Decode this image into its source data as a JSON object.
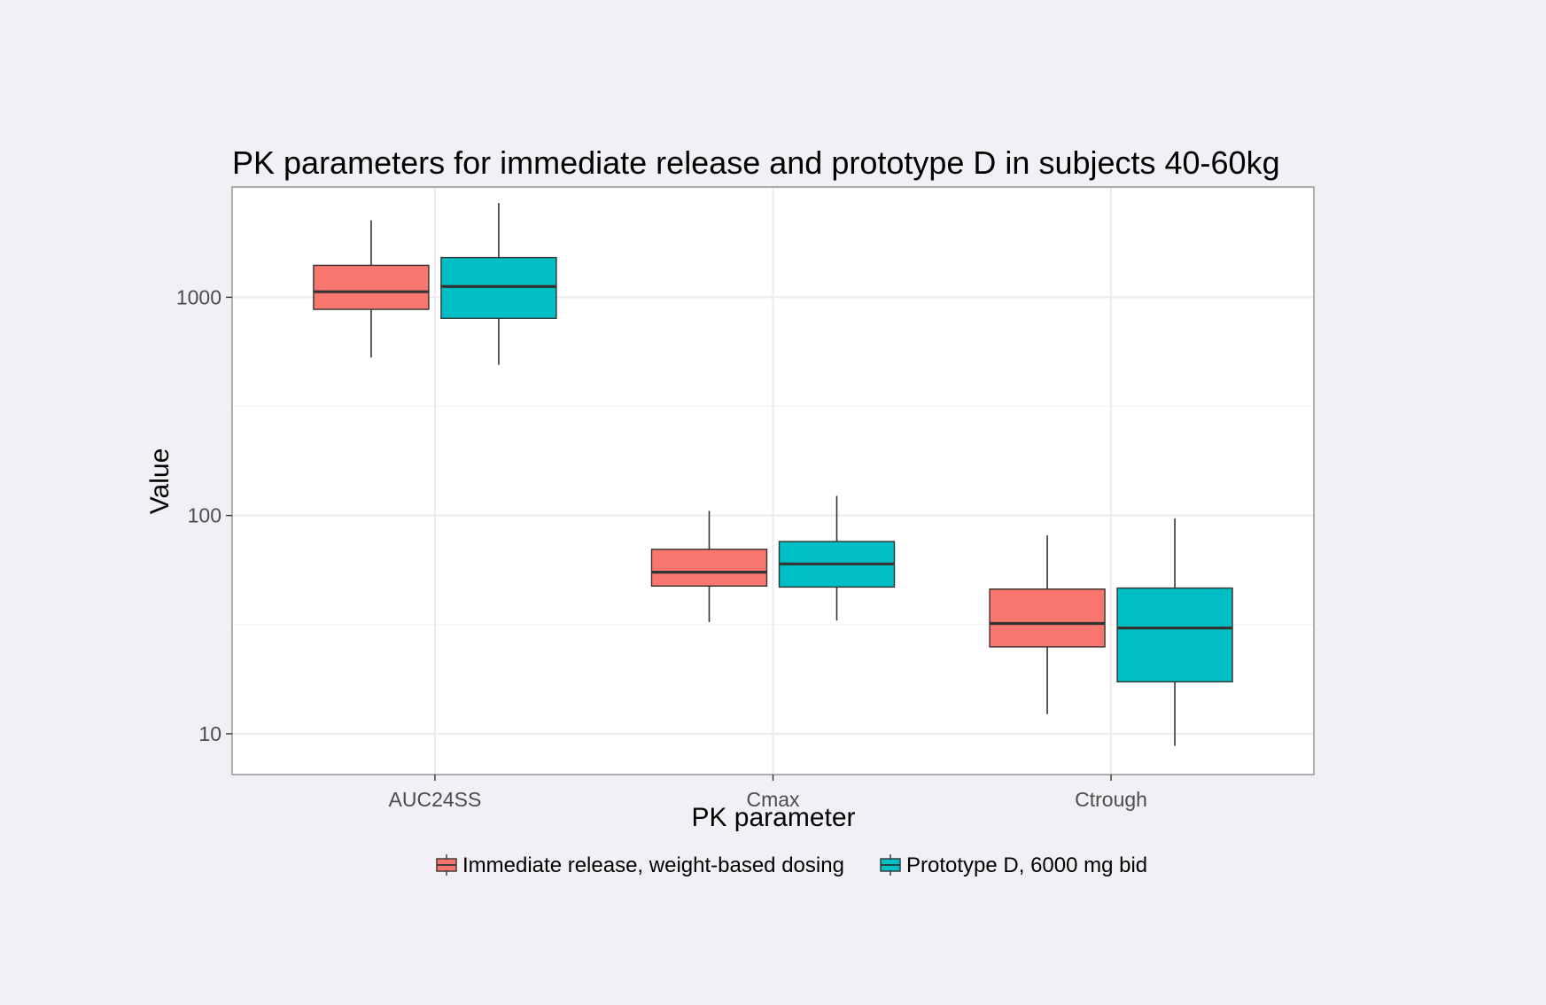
{
  "chart_data": {
    "type": "boxplot",
    "title": "PK parameters for immediate release and prototype D in subjects 40-60kg",
    "xlabel": "PK parameter",
    "ylabel": "Value",
    "y_scale": "log10",
    "ylim": [
      6.5,
      3200
    ],
    "y_ticks": [
      10,
      100,
      1000
    ],
    "y_tick_labels": [
      "10",
      "100",
      "1000"
    ],
    "categories": [
      "AUC24SS",
      "Cmax",
      "Ctrough"
    ],
    "grid": true,
    "legend_position": "bottom",
    "series": [
      {
        "name": "Immediate release, weight-based dosing",
        "color": "#F8766D",
        "boxes": [
          {
            "whisker_low": 530,
            "q1": 880,
            "median": 1060,
            "q3": 1400,
            "whisker_high": 2250
          },
          {
            "whisker_low": 32.5,
            "q1": 47.5,
            "median": 55,
            "q3": 70,
            "whisker_high": 105
          },
          {
            "whisker_low": 12.3,
            "q1": 25,
            "median": 32,
            "q3": 46,
            "whisker_high": 81
          }
        ]
      },
      {
        "name": "Prototype D, 6000 mg bid",
        "color": "#00BFC4",
        "boxes": [
          {
            "whisker_low": 490,
            "q1": 800,
            "median": 1120,
            "q3": 1520,
            "whisker_high": 2700
          },
          {
            "whisker_low": 33,
            "q1": 47,
            "median": 60,
            "q3": 76,
            "whisker_high": 123
          },
          {
            "whisker_low": 8.8,
            "q1": 17.3,
            "median": 30.5,
            "q3": 46.5,
            "whisker_high": 97
          }
        ]
      }
    ]
  }
}
